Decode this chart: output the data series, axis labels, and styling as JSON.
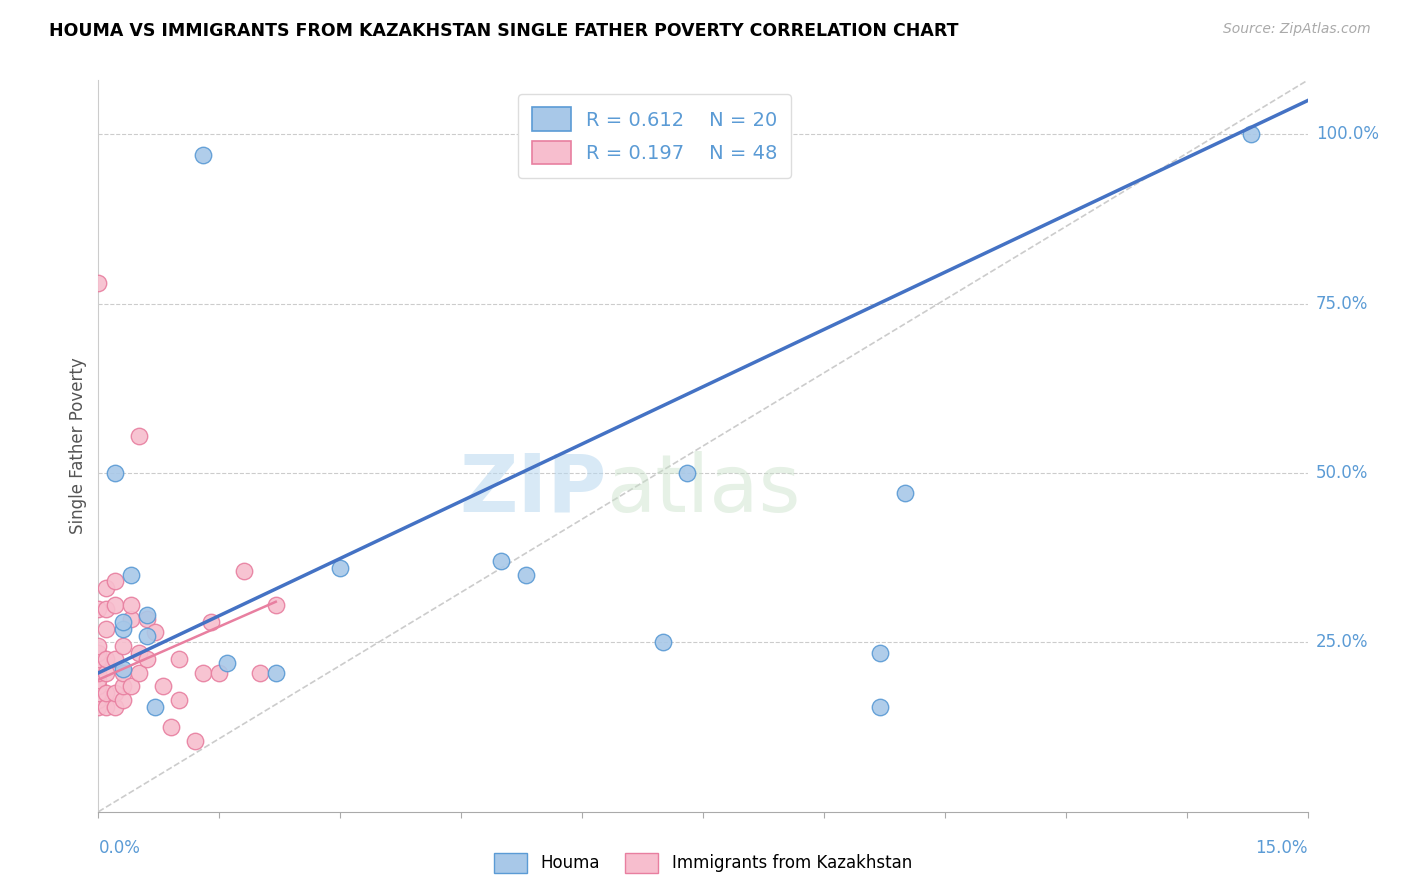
{
  "title": "HOUMA VS IMMIGRANTS FROM KAZAKHSTAN SINGLE FATHER POVERTY CORRELATION CHART",
  "source": "Source: ZipAtlas.com",
  "ylabel": "Single Father Poverty",
  "ytick_labels": [
    "25.0%",
    "50.0%",
    "75.0%",
    "100.0%"
  ],
  "ytick_values": [
    0.25,
    0.5,
    0.75,
    1.0
  ],
  "xlim": [
    0.0,
    0.15
  ],
  "ylim": [
    0.0,
    1.08
  ],
  "watermark_zip": "ZIP",
  "watermark_atlas": "atlas",
  "color_houma_fill": "#a8c8e8",
  "color_houma_edge": "#5b9bd5",
  "color_kaz_fill": "#f7bece",
  "color_kaz_edge": "#e87fa0",
  "color_line_houma": "#4472c4",
  "color_line_kaz": "#e87fa0",
  "color_ref_line": "#cccccc",
  "houma_x": [
    0.013,
    0.002,
    0.003,
    0.003,
    0.003,
    0.004,
    0.006,
    0.006,
    0.007,
    0.016,
    0.022,
    0.03,
    0.05,
    0.053,
    0.07,
    0.073,
    0.097,
    0.1,
    0.097,
    0.143
  ],
  "houma_y": [
    0.97,
    0.5,
    0.27,
    0.21,
    0.28,
    0.35,
    0.29,
    0.26,
    0.155,
    0.22,
    0.205,
    0.36,
    0.37,
    0.35,
    0.25,
    0.5,
    0.235,
    0.47,
    0.155,
    1.0
  ],
  "kaz_x": [
    0.0,
    0.0,
    0.0,
    0.0,
    0.0,
    0.0,
    0.0,
    0.0,
    0.0,
    0.0,
    0.0,
    0.0,
    0.001,
    0.001,
    0.001,
    0.001,
    0.001,
    0.001,
    0.001,
    0.002,
    0.002,
    0.002,
    0.002,
    0.002,
    0.003,
    0.003,
    0.003,
    0.003,
    0.004,
    0.004,
    0.004,
    0.005,
    0.005,
    0.005,
    0.006,
    0.006,
    0.007,
    0.008,
    0.009,
    0.01,
    0.01,
    0.012,
    0.013,
    0.014,
    0.015,
    0.018,
    0.02,
    0.022
  ],
  "kaz_y": [
    0.155,
    0.165,
    0.175,
    0.185,
    0.195,
    0.205,
    0.215,
    0.225,
    0.235,
    0.245,
    0.3,
    0.78,
    0.155,
    0.175,
    0.205,
    0.225,
    0.27,
    0.3,
    0.33,
    0.155,
    0.175,
    0.225,
    0.305,
    0.34,
    0.165,
    0.185,
    0.205,
    0.245,
    0.185,
    0.285,
    0.305,
    0.205,
    0.235,
    0.555,
    0.225,
    0.285,
    0.265,
    0.185,
    0.125,
    0.165,
    0.225,
    0.105,
    0.205,
    0.28,
    0.205,
    0.355,
    0.205,
    0.305
  ],
  "houma_line_x": [
    0.0,
    0.15
  ],
  "houma_line_y": [
    0.205,
    1.05
  ],
  "kaz_line_x": [
    0.0,
    0.022
  ],
  "kaz_line_y": [
    0.195,
    0.31
  ],
  "ref_line_x": [
    0.0,
    0.15
  ],
  "ref_line_y": [
    0.0,
    1.08
  ],
  "legend_r1": "R = 0.612",
  "legend_n1": "N = 20",
  "legend_r2": "R = 0.197",
  "legend_n2": "N = 48"
}
